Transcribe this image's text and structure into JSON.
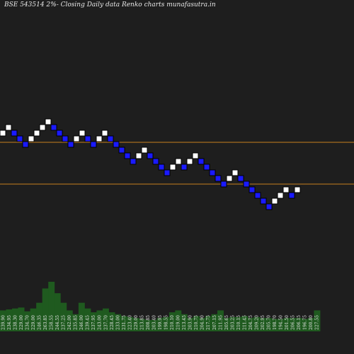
{
  "chart_data": {
    "type": "renko",
    "title": "BSE 543514  2%-  Closing Daily data  Renko  charts munafasutra.in",
    "colors": {
      "background": "#1e1e1e",
      "up_brick": "#ffffff",
      "down_brick": "#1a1aff",
      "reference_line": "#c8801e",
      "volume": "#1f5a1f"
    },
    "bricks": [
      "up",
      "up",
      "down",
      "down",
      "down",
      "up",
      "up",
      "up",
      "up",
      "down",
      "down",
      "down",
      "down",
      "up",
      "up",
      "down",
      "down",
      "up",
      "up",
      "down",
      "down",
      "down",
      "down",
      "down",
      "up",
      "up",
      "down",
      "down",
      "down",
      "down",
      "up",
      "up",
      "down",
      "up",
      "up",
      "down",
      "down",
      "down",
      "down",
      "down",
      "up",
      "up",
      "down",
      "down",
      "down",
      "down",
      "down",
      "down",
      "up",
      "up",
      "up",
      "down",
      "up"
    ],
    "volume_labels": [
      "239.90",
      "234.95",
      "238.30",
      "229.00",
      "234.70",
      "229.00",
      "246.35",
      "263.85",
      "258.55",
      "244.55",
      "237.25",
      "242.00",
      "235.85",
      "246.00",
      "239.45",
      "237.95",
      "243.00",
      "237.70",
      "228.45",
      "233.00",
      "231.75",
      "223.40",
      "229.00",
      "213.85",
      "208.85",
      "203.40",
      "199.95",
      "198.55",
      "210.10",
      "219.00",
      "213.45",
      "203.90",
      "210.75",
      "204.90",
      "217.75",
      "207.15",
      "211.95",
      "205.65",
      "203.25",
      "210.15",
      "211.45",
      "204.75",
      "209.20",
      "202.95",
      "205.70",
      "198.70",
      "194.50",
      "201.50",
      "206.55",
      "206.15",
      "196.75",
      "200.80",
      "227.55"
    ],
    "volume": [
      22,
      23,
      24,
      25,
      21,
      24,
      30,
      45,
      52,
      40,
      30,
      22,
      18,
      30,
      24,
      20,
      22,
      24,
      20,
      18,
      16,
      15,
      14,
      13,
      12,
      12,
      14,
      15,
      20,
      22,
      18,
      14,
      16,
      14,
      16,
      18,
      22,
      14,
      15,
      15,
      16,
      14,
      15,
      14,
      14,
      13,
      13,
      14,
      14,
      14,
      13,
      14,
      22
    ]
  }
}
